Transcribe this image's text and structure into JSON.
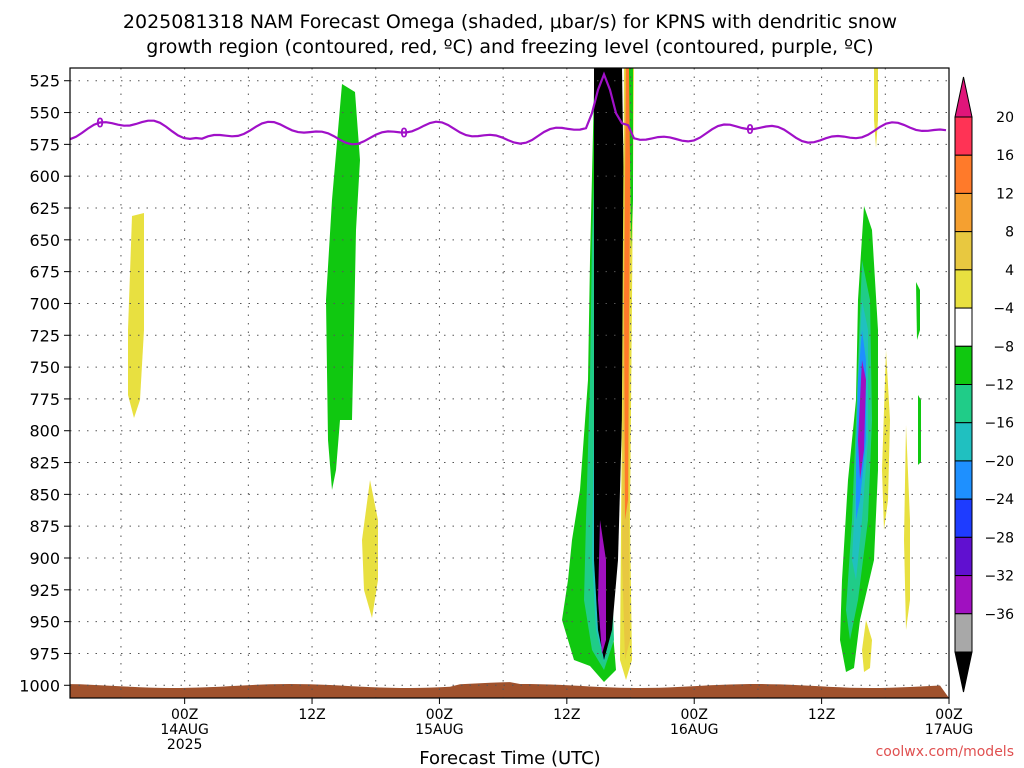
{
  "chart_data": {
    "type": "heatmap",
    "title_lines": [
      "2025081318 NAM Forecast Omega (shaded, μbar/s) for KPNS with dendritic snow",
      "growth region (contoured, red, ºC) and freezing level (contoured, purple, ºC)"
    ],
    "xlabel": "Forecast Time (UTC)",
    "credit": "coolwx.com/models",
    "x_hours_range": [
      -9,
      60
    ],
    "x_ticks": [
      {
        "hour": 0,
        "lines": [
          "00Z",
          "14AUG",
          "2025"
        ]
      },
      {
        "hour": 10,
        "lines": [
          "12Z"
        ]
      },
      {
        "hour": 20,
        "lines": [
          "00Z",
          "15AUG"
        ]
      },
      {
        "hour": 30,
        "lines": [
          "12Z"
        ]
      },
      {
        "hour": 40,
        "lines": [
          "00Z",
          "16AUG"
        ]
      },
      {
        "hour": 50,
        "lines": [
          "12Z"
        ]
      },
      {
        "hour": 60,
        "lines": [
          "00Z",
          "17AUG"
        ]
      }
    ],
    "y_pressure_ticks": [
      525,
      550,
      575,
      600,
      625,
      650,
      675,
      700,
      725,
      750,
      775,
      800,
      825,
      850,
      875,
      900,
      925,
      950,
      975,
      1000
    ],
    "y_range_mb": [
      515,
      1010
    ],
    "grid": true,
    "colorbar": {
      "labels": [
        "20",
        "16",
        "12",
        "8",
        "4",
        "−4",
        "−8",
        "−12",
        "−16",
        "−20",
        "−24",
        "−28",
        "−32",
        "−36"
      ],
      "colors": [
        "#ff3355",
        "#ff7a2a",
        "#f5a030",
        "#e8c840",
        "#e8e040",
        "#ffffff",
        "#10c810",
        "#20cc88",
        "#20c0c0",
        "#1e90ff",
        "#1e3cff",
        "#6010d0",
        "#a010c0",
        "#a8a8a8",
        "#000000"
      ],
      "top_arrow_color": "#e0157a",
      "bottom_arrow_color": "#000000"
    },
    "freezing_level_contour_label": "0",
    "terrain_color": "#a0522d"
  }
}
